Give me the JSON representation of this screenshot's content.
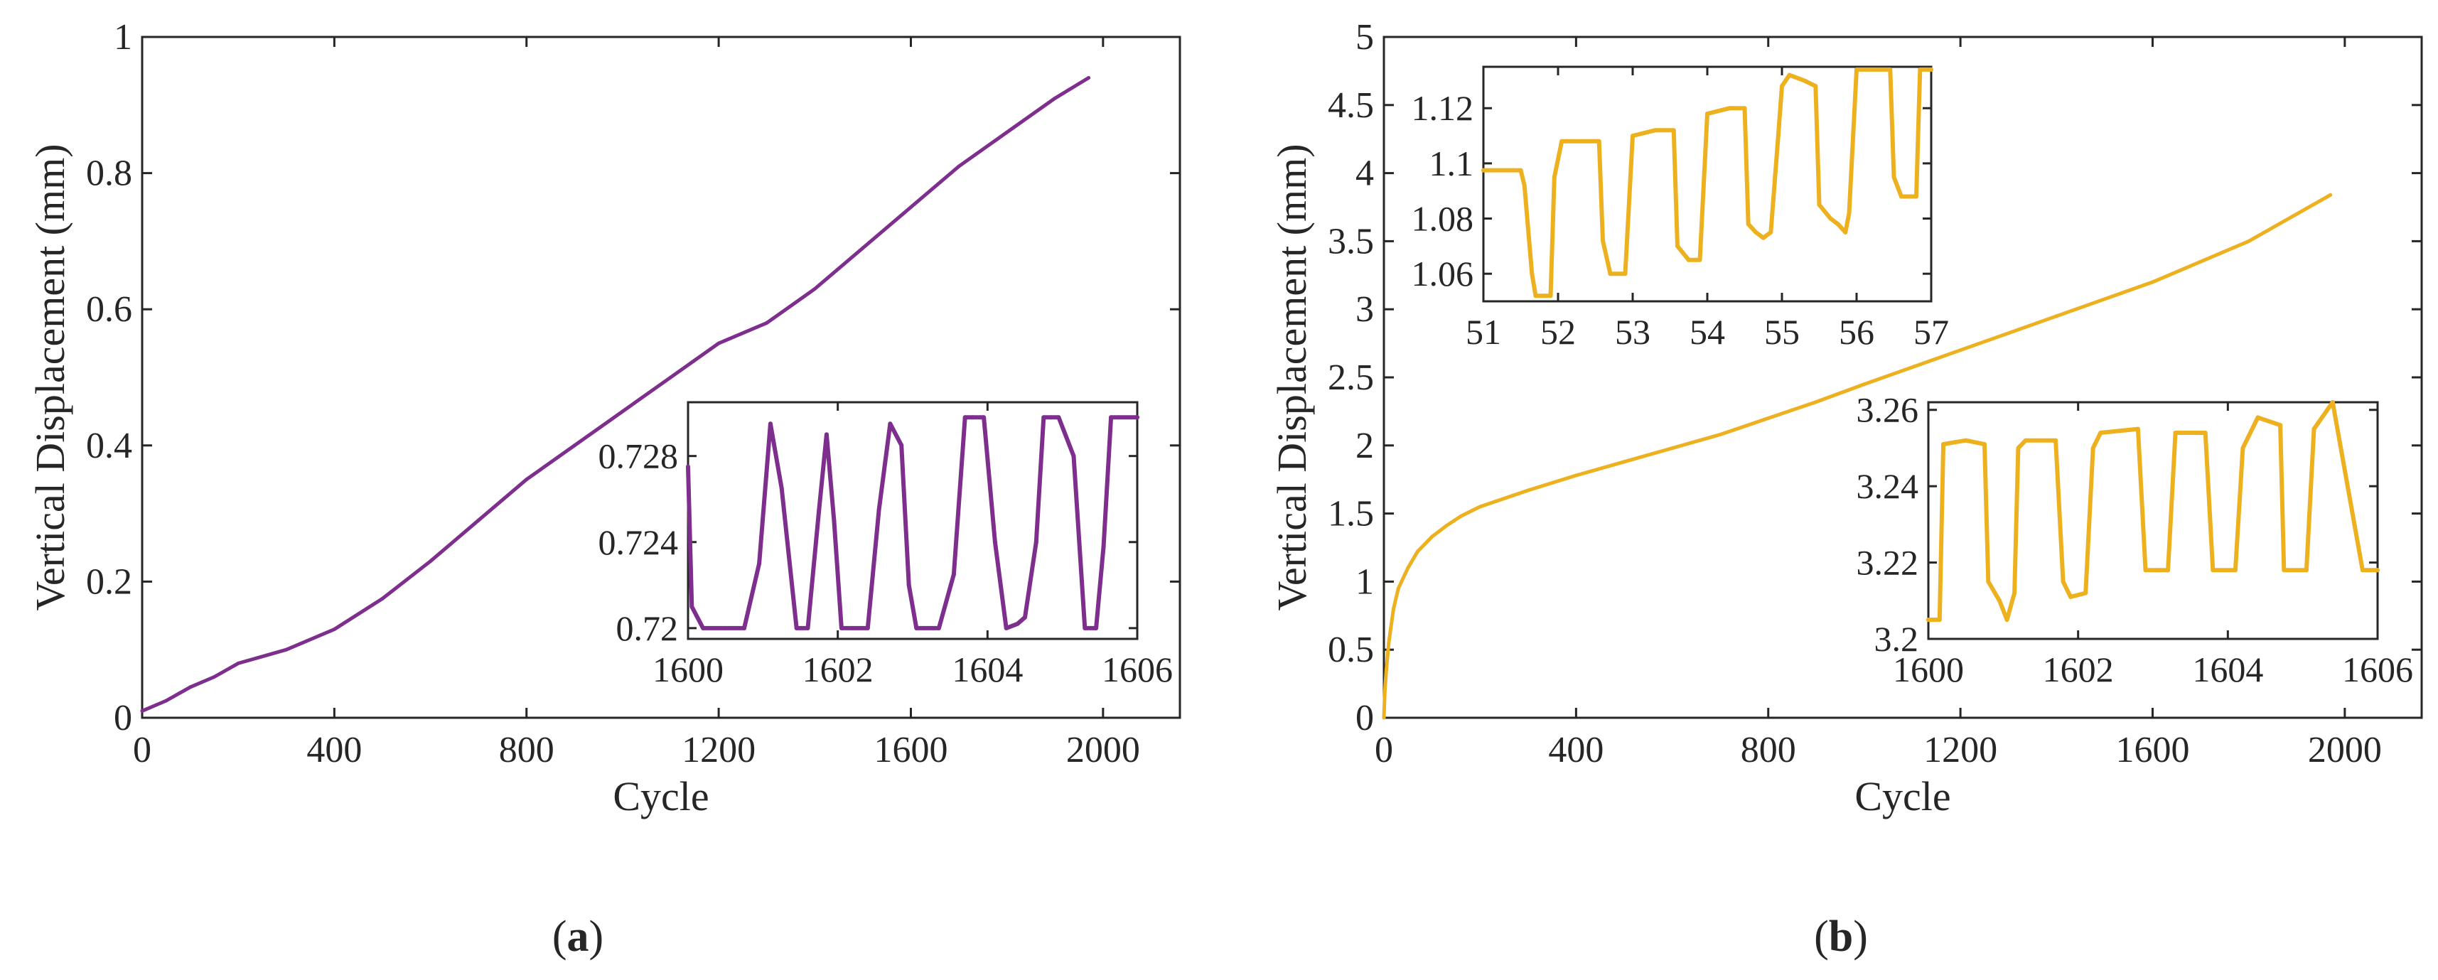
{
  "chart_data": [
    {
      "panel": "a",
      "caption": "(a)",
      "caption_letter": "a",
      "type": "line",
      "xlabel": "Cycle",
      "ylabel": "Vertical Displacement (mm)",
      "xlim": [
        0,
        2160
      ],
      "ylim": [
        0,
        1
      ],
      "xticks": [
        0,
        400,
        800,
        1200,
        1600,
        2000
      ],
      "yticks": [
        0,
        0.2,
        0.4,
        0.6,
        0.8,
        1
      ],
      "ytick_labels": [
        "0",
        "0.2",
        "0.4",
        "0.6",
        "0.8",
        "1"
      ],
      "color": "#7E2F8E",
      "series": [
        {
          "name": "Vertical displacement",
          "x": [
            0,
            50,
            100,
            150,
            200,
            300,
            400,
            500,
            600,
            700,
            800,
            900,
            1000,
            1100,
            1200,
            1300,
            1400,
            1500,
            1600,
            1700,
            1800,
            1900,
            1970
          ],
          "y": [
            0.01,
            0.025,
            0.045,
            0.06,
            0.08,
            0.1,
            0.13,
            0.175,
            0.23,
            0.29,
            0.35,
            0.4,
            0.45,
            0.5,
            0.55,
            0.58,
            0.63,
            0.69,
            0.75,
            0.81,
            0.86,
            0.91,
            0.94
          ]
        }
      ],
      "inset": {
        "position": "bottom-right",
        "xlim": [
          1600,
          1606
        ],
        "ylim": [
          0.7195,
          0.7305
        ],
        "xticks": [
          1600,
          1602,
          1604,
          1606
        ],
        "yticks": [
          0.72,
          0.724,
          0.728
        ],
        "ytick_labels": [
          "0.72",
          "0.724",
          "0.728"
        ],
        "x": [
          1600,
          1600.05,
          1600.2,
          1600.5,
          1600.75,
          1600.95,
          1601.1,
          1601.25,
          1601.45,
          1601.6,
          1601.75,
          1601.85,
          1601.95,
          1602.05,
          1602.2,
          1602.4,
          1602.55,
          1602.7,
          1602.85,
          1602.95,
          1603.05,
          1603.15,
          1603.35,
          1603.55,
          1603.7,
          1603.8,
          1603.95,
          1604.1,
          1604.25,
          1604.4,
          1604.5,
          1604.65,
          1604.75,
          1604.85,
          1604.95,
          1605.15,
          1605.3,
          1605.45,
          1605.55,
          1605.65,
          1605.75,
          1606
        ],
        "y": [
          0.7275,
          0.721,
          0.72,
          0.72,
          0.72,
          0.723,
          0.7295,
          0.7265,
          0.72,
          0.72,
          0.7255,
          0.729,
          0.725,
          0.72,
          0.72,
          0.72,
          0.7255,
          0.7295,
          0.7285,
          0.722,
          0.72,
          0.72,
          0.72,
          0.7225,
          0.7298,
          0.7298,
          0.7298,
          0.724,
          0.72,
          0.7202,
          0.7205,
          0.724,
          0.7298,
          0.7298,
          0.7298,
          0.728,
          0.72,
          0.72,
          0.7238,
          0.7298,
          0.7298,
          0.7298
        ]
      }
    },
    {
      "panel": "b",
      "caption": "(b)",
      "caption_letter": "b",
      "type": "line",
      "xlabel": "Cycle",
      "ylabel": "Vertical Displacement (mm)",
      "xlim": [
        0,
        2160
      ],
      "ylim": [
        0,
        5
      ],
      "xticks": [
        0,
        400,
        800,
        1200,
        1600,
        2000
      ],
      "yticks": [
        0,
        0.5,
        1,
        1.5,
        2,
        2.5,
        3,
        3.5,
        4,
        4.5,
        5
      ],
      "ytick_labels": [
        "0",
        "0.5",
        "1",
        "1.5",
        "2",
        "2.5",
        "3",
        "3.5",
        "4",
        "4.5",
        "5"
      ],
      "color": "#EDB120",
      "series": [
        {
          "name": "Vertical displacement",
          "x": [
            0,
            2,
            5,
            10,
            20,
            30,
            50,
            70,
            100,
            130,
            160,
            200,
            300,
            400,
            500,
            600,
            700,
            800,
            900,
            1000,
            1200,
            1400,
            1600,
            1800,
            1970
          ],
          "y": [
            0,
            0.2,
            0.35,
            0.55,
            0.8,
            0.95,
            1.1,
            1.22,
            1.33,
            1.41,
            1.48,
            1.55,
            1.67,
            1.78,
            1.88,
            1.98,
            2.08,
            2.2,
            2.32,
            2.45,
            2.7,
            2.95,
            3.2,
            3.5,
            3.84
          ]
        }
      ],
      "insets": [
        {
          "position": "top-left",
          "xlim": [
            51,
            57
          ],
          "ylim": [
            1.05,
            1.135
          ],
          "xticks": [
            51,
            52,
            53,
            54,
            55,
            56,
            57
          ],
          "yticks": [
            1.06,
            1.08,
            1.1,
            1.12
          ],
          "ytick_labels": [
            "1.06",
            "1.08",
            "1.1",
            "1.12"
          ],
          "x": [
            51,
            51.5,
            51.55,
            51.65,
            51.7,
            51.8,
            51.9,
            51.95,
            52.05,
            52.3,
            52.55,
            52.6,
            52.7,
            52.85,
            52.9,
            53.0,
            53.3,
            53.55,
            53.6,
            53.75,
            53.85,
            53.9,
            54.0,
            54.3,
            54.5,
            54.55,
            54.65,
            54.75,
            54.85,
            54.95,
            55.0,
            55.1,
            55.3,
            55.45,
            55.5,
            55.65,
            55.75,
            55.85,
            55.9,
            56.0,
            56.15,
            56.35,
            56.45,
            56.5,
            56.6,
            56.75,
            56.8,
            56.85,
            56.9,
            57
          ],
          "y": [
            1.0975,
            1.0975,
            1.092,
            1.06,
            1.052,
            1.052,
            1.052,
            1.095,
            1.108,
            1.108,
            1.108,
            1.072,
            1.06,
            1.06,
            1.06,
            1.11,
            1.112,
            1.112,
            1.07,
            1.065,
            1.065,
            1.065,
            1.118,
            1.12,
            1.12,
            1.078,
            1.075,
            1.073,
            1.075,
            1.11,
            1.128,
            1.132,
            1.13,
            1.128,
            1.085,
            1.08,
            1.078,
            1.075,
            1.082,
            1.134,
            1.134,
            1.134,
            1.134,
            1.095,
            1.088,
            1.088,
            1.088,
            1.134,
            1.134,
            1.134
          ]
        },
        {
          "position": "bottom-right",
          "xlim": [
            1600,
            1606
          ],
          "ylim": [
            3.2,
            3.262
          ],
          "xticks": [
            1600,
            1602,
            1604,
            1606
          ],
          "yticks": [
            3.2,
            3.22,
            3.24,
            3.26
          ],
          "ytick_labels": [
            "3.2",
            "3.22",
            "3.24",
            "3.26"
          ],
          "x": [
            1600,
            1600.15,
            1600.2,
            1600.5,
            1600.75,
            1600.8,
            1600.95,
            1601.05,
            1601.15,
            1601.2,
            1601.3,
            1601.7,
            1601.8,
            1601.9,
            1602.1,
            1602.2,
            1602.3,
            1602.8,
            1602.9,
            1603.1,
            1603.2,
            1603.3,
            1603.7,
            1603.8,
            1604.1,
            1604.2,
            1604.4,
            1604.7,
            1604.75,
            1605.05,
            1605.15,
            1605.4,
            1605.8,
            1605.85,
            1606
          ],
          "y": [
            3.205,
            3.205,
            3.251,
            3.252,
            3.251,
            3.215,
            3.21,
            3.205,
            3.212,
            3.25,
            3.252,
            3.252,
            3.215,
            3.211,
            3.212,
            3.25,
            3.254,
            3.255,
            3.218,
            3.218,
            3.218,
            3.254,
            3.254,
            3.218,
            3.218,
            3.25,
            3.258,
            3.256,
            3.218,
            3.218,
            3.255,
            3.262,
            3.218,
            3.218,
            3.218
          ]
        }
      ]
    }
  ]
}
